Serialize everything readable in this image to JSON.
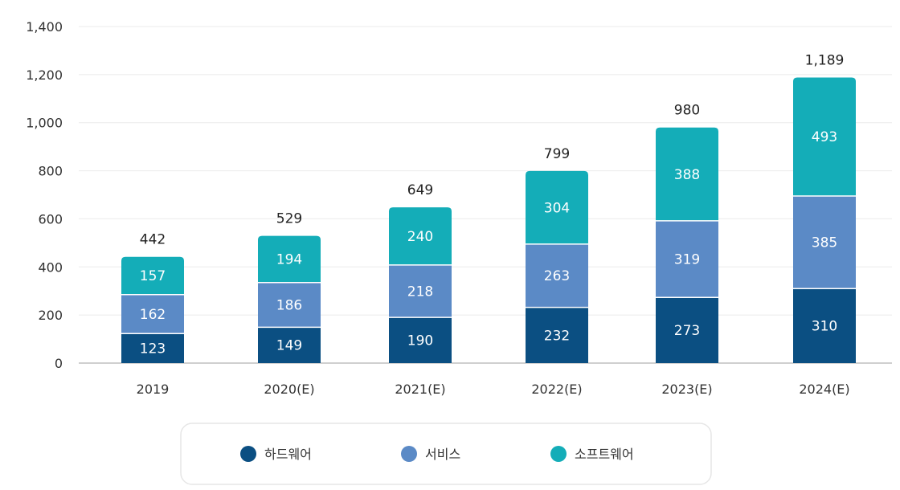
{
  "chart_data": {
    "type": "bar",
    "stacked": true,
    "categories": [
      "2019",
      "2020(E)",
      "2021(E)",
      "2022(E)",
      "2023(E)",
      "2024(E)"
    ],
    "series": [
      {
        "name": "하드웨어",
        "color": "#0b4f82",
        "values": [
          123,
          149,
          190,
          232,
          273,
          310
        ]
      },
      {
        "name": "서비스",
        "color": "#5b8ac6",
        "values": [
          162,
          186,
          218,
          263,
          319,
          385
        ]
      },
      {
        "name": "소프트웨어",
        "color": "#14adb8",
        "values": [
          157,
          194,
          240,
          304,
          388,
          493
        ]
      }
    ],
    "totals": [
      "442",
      "529",
      "649",
      "799",
      "980",
      "1,189"
    ],
    "y_ticks": [
      "0",
      "200",
      "400",
      "600",
      "800",
      "1,000",
      "1,200",
      "1,400"
    ],
    "ylim": [
      0,
      1400
    ],
    "grid": true,
    "legend_position": "bottom"
  }
}
